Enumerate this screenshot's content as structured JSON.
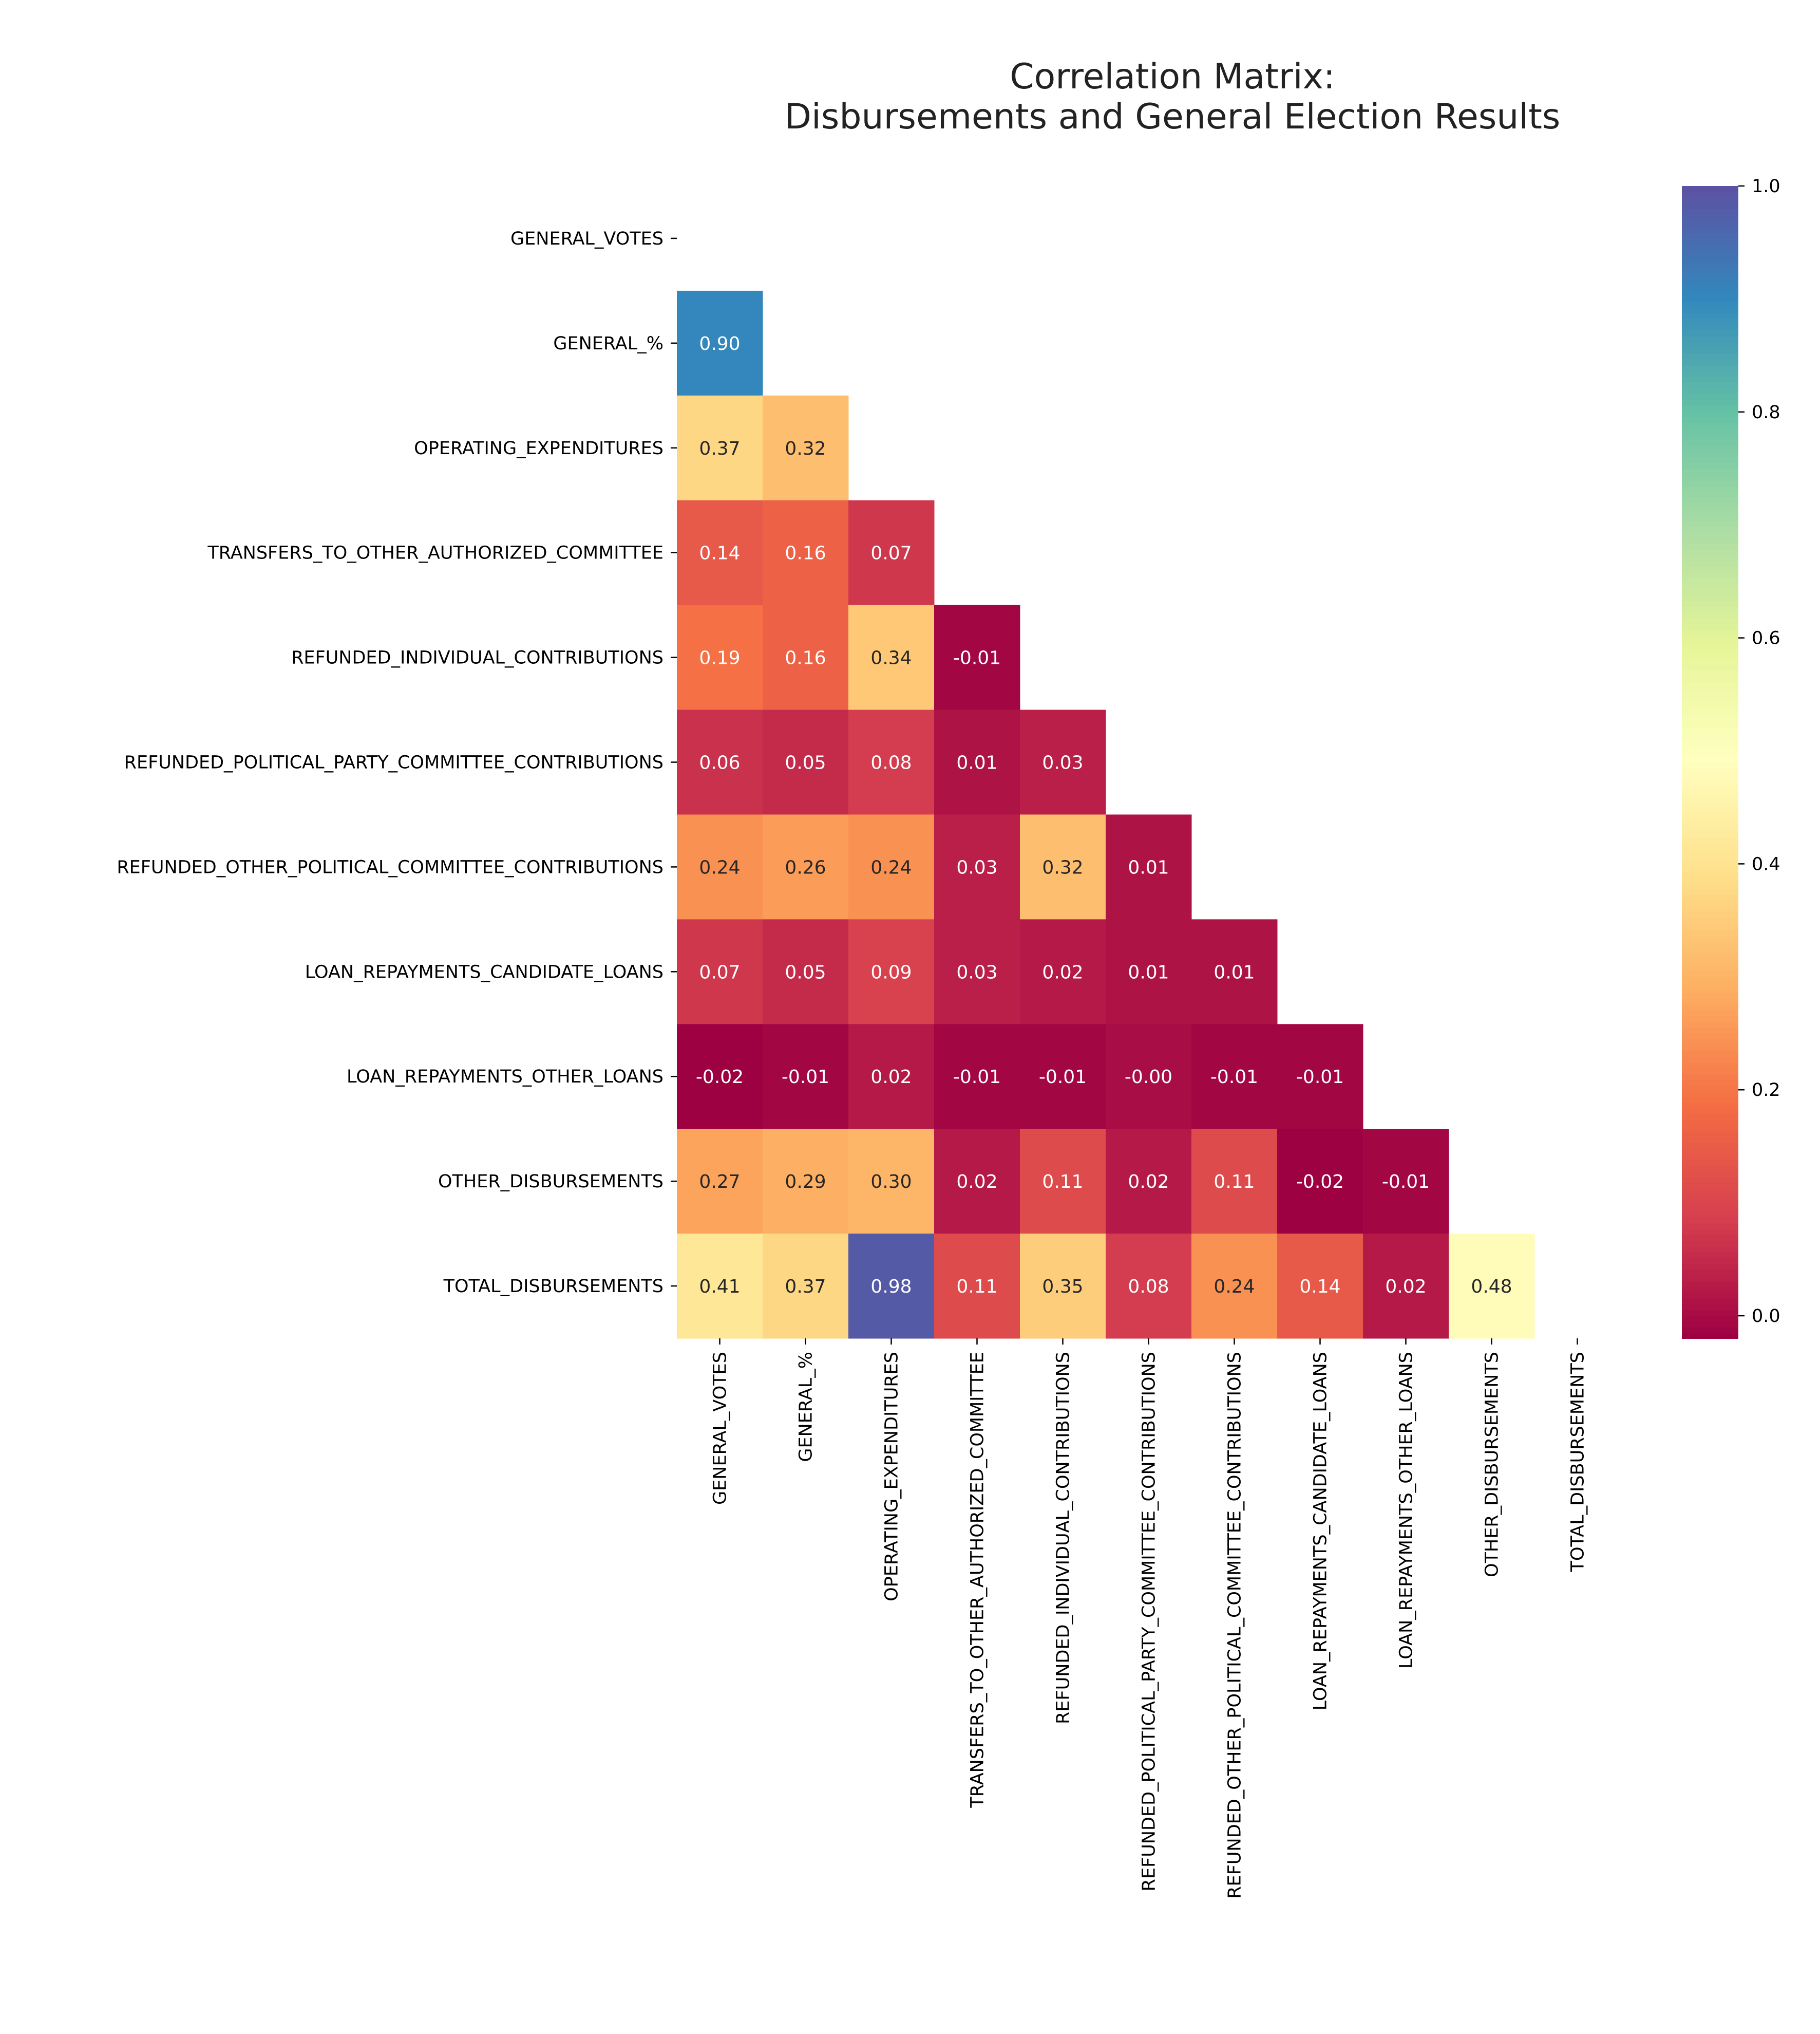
{
  "chart_data": {
    "type": "heatmap",
    "title": "Correlation Matrix:\nDisbursements and General Election Results",
    "title_lines": [
      "Correlation Matrix:",
      "Disbursements and General Election Results"
    ],
    "colormap": "Spectral",
    "vmin": -0.02,
    "vmax": 1.0,
    "mask": "upper triangle including diagonal",
    "labels": [
      "GENERAL_VOTES",
      "GENERAL_%",
      "OPERATING_EXPENDITURES",
      "TRANSFERS_TO_OTHER_AUTHORIZED_COMMITTEE",
      "REFUNDED_INDIVIDUAL_CONTRIBUTIONS",
      "REFUNDED_POLITICAL_PARTY_COMMITTEE_CONTRIBUTIONS",
      "REFUNDED_OTHER_POLITICAL_COMMITTEE_CONTRIBUTIONS",
      "LOAN_REPAYMENTS_CANDIDATE_LOANS",
      "LOAN_REPAYMENTS_OTHER_LOANS",
      "OTHER_DISBURSEMENTS",
      "TOTAL_DISBURSEMENTS"
    ],
    "values": [
      [],
      [
        "0.90"
      ],
      [
        "0.37",
        "0.32"
      ],
      [
        "0.14",
        "0.16",
        "0.07"
      ],
      [
        "0.19",
        "0.16",
        "0.34",
        "-0.01"
      ],
      [
        "0.06",
        "0.05",
        "0.08",
        "0.01",
        "0.03"
      ],
      [
        "0.24",
        "0.26",
        "0.24",
        "0.03",
        "0.32",
        "0.01"
      ],
      [
        "0.07",
        "0.05",
        "0.09",
        "0.03",
        "0.02",
        "0.01",
        "0.01"
      ],
      [
        "-0.02",
        "-0.01",
        "0.02",
        "-0.01",
        "-0.01",
        "-0.00",
        "-0.01",
        "-0.01"
      ],
      [
        "0.27",
        "0.29",
        "0.30",
        "0.02",
        "0.11",
        "0.02",
        "0.11",
        "-0.02",
        "-0.01"
      ],
      [
        "0.41",
        "0.37",
        "0.98",
        "0.11",
        "0.35",
        "0.08",
        "0.24",
        "0.14",
        "0.02",
        "0.48"
      ]
    ],
    "colorbar_ticks": [
      "0.0",
      "0.2",
      "0.4",
      "0.6",
      "0.8",
      "1.0"
    ],
    "colorbar_tick_values": [
      0,
      0.2,
      0.4,
      0.6,
      0.8,
      1.0
    ]
  }
}
